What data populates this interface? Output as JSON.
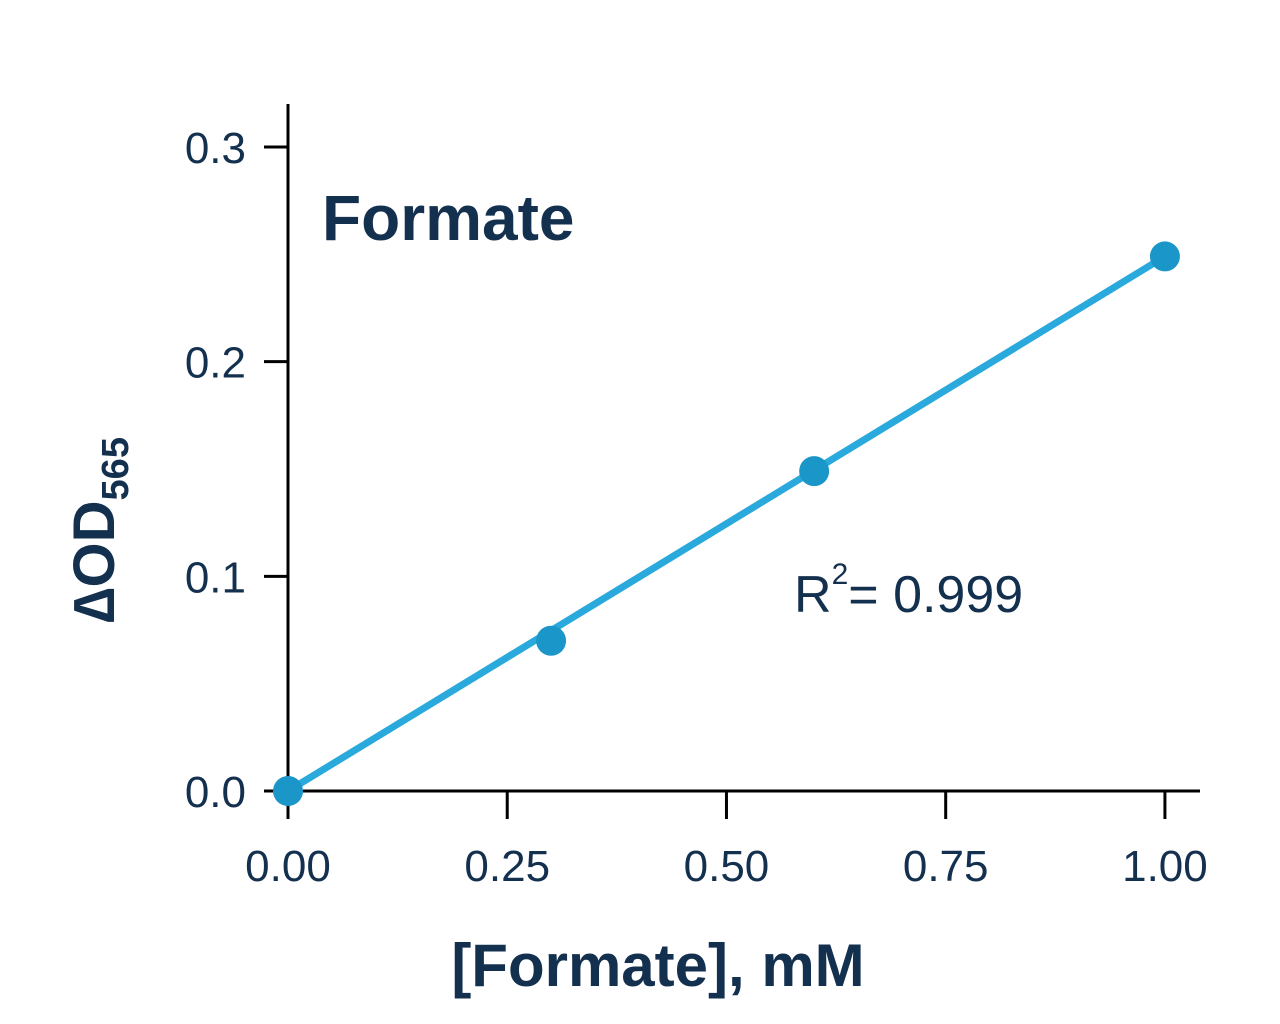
{
  "chart_data": {
    "type": "scatter",
    "title": "Formate",
    "xlabel": "[Formate], mM",
    "ylabel": {
      "delta_symbol": "∆",
      "main": "OD",
      "subscript": "565"
    },
    "xlim": [
      0,
      1.04
    ],
    "ylim": [
      0,
      0.32
    ],
    "xticks": [
      "0.00",
      "0.25",
      "0.50",
      "0.75",
      "1.00"
    ],
    "yticks": [
      "0.0",
      "0.1",
      "0.2",
      "0.3"
    ],
    "grid": false,
    "series": [
      {
        "x": [
          0,
          0.3,
          0.6,
          1.0
        ],
        "y": [
          0.0,
          0.07,
          0.149,
          0.249
        ],
        "color": "#1b96c9",
        "fit_line": {
          "x": [
            0,
            1.0
          ],
          "y": [
            0.0,
            0.249
          ],
          "color": "#2aa9dc"
        }
      }
    ],
    "annotation": {
      "base": "R",
      "superscript": "2",
      "text": "= 0.999"
    },
    "colors": {
      "axis": "#000000",
      "text": "#14304f",
      "delta": "#4a2568"
    }
  }
}
